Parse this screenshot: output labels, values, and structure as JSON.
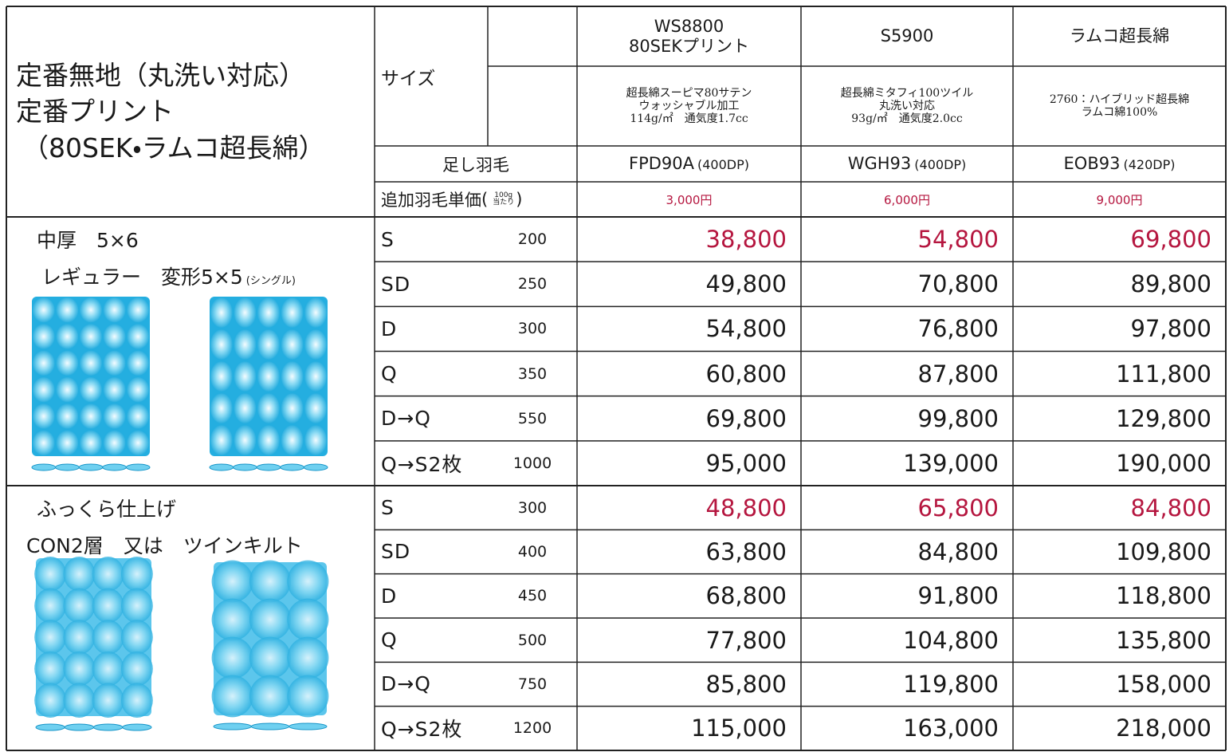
{
  "header": {
    "title": [
      "定番無地（丸洗い対応）",
      "定番プリント",
      "（80SEK・ラムコ超長綿）"
    ],
    "size_label": "サイズ",
    "down_label": "足し羽毛",
    "extra_label": "追加羽毛単価",
    "extra_unit": [
      "100g",
      "当たり"
    ],
    "products": [
      {
        "name": [
          "WS8800",
          "80SEKプリント"
        ],
        "description": [
          "超長綿スーピマ80サテン",
          "ウォッシャブル加工",
          "114g/㎡　通気度1.7cc"
        ],
        "down_code": "FPD90A",
        "down_dp": "(400DP)",
        "extra_price": "3,000円"
      },
      {
        "name": [
          "S5900"
        ],
        "description": [
          "超長綿ミタフィ100ツイル",
          "丸洗い対応",
          "93g/㎡　通気度2.0cc"
        ],
        "down_code": "WGH93",
        "down_dp": "(400DP)",
        "extra_price": "6,000円"
      },
      {
        "name": [
          "ラムコ超長綿"
        ],
        "description": [
          "2760：ハイブリッド超長綿",
          "ラムコ綿100%"
        ],
        "down_code": "EOB93",
        "down_dp": "(420DP)",
        "extra_price": "9,000円"
      }
    ]
  },
  "groups": [
    {
      "label": [
        "中厚　5×6",
        "レギュラー　変形5×5"
      ],
      "label_note": "(シングル)",
      "rows": [
        {
          "size": "S",
          "grams": 200,
          "prices": [
            "38,800",
            "54,800",
            "69,800"
          ]
        },
        {
          "size": "SD",
          "grams": 250,
          "prices": [
            "49,800",
            "70,800",
            "89,800"
          ]
        },
        {
          "size": "D",
          "grams": 300,
          "prices": [
            "54,800",
            "76,800",
            "97,800"
          ]
        },
        {
          "size": "Q",
          "grams": 350,
          "prices": [
            "60,800",
            "87,800",
            "111,800"
          ]
        },
        {
          "size": "D→Q",
          "grams": 550,
          "prices": [
            "69,800",
            "99,800",
            "129,800"
          ]
        },
        {
          "size": "Q→S2枚",
          "grams": 1000,
          "prices": [
            "95,000",
            "139,000",
            "190,000"
          ]
        }
      ]
    },
    {
      "label": [
        "ふっくら仕上げ",
        "CON2層　又は　ツインキルト"
      ],
      "rows": [
        {
          "size": "S",
          "grams": 300,
          "prices": [
            "48,800",
            "65,800",
            "84,800"
          ]
        },
        {
          "size": "SD",
          "grams": 400,
          "prices": [
            "63,800",
            "84,800",
            "109,800"
          ]
        },
        {
          "size": "D",
          "grams": 450,
          "prices": [
            "68,800",
            "91,800",
            "118,800"
          ]
        },
        {
          "size": "Q",
          "grams": 500,
          "prices": [
            "77,800",
            "104,800",
            "135,800"
          ]
        },
        {
          "size": "D→Q",
          "grams": 750,
          "prices": [
            "85,800",
            "119,800",
            "158,000"
          ]
        },
        {
          "size": "Q→S2枚",
          "grams": 1200,
          "prices": [
            "115,000",
            "163,000",
            "218,000"
          ]
        }
      ]
    }
  ]
}
